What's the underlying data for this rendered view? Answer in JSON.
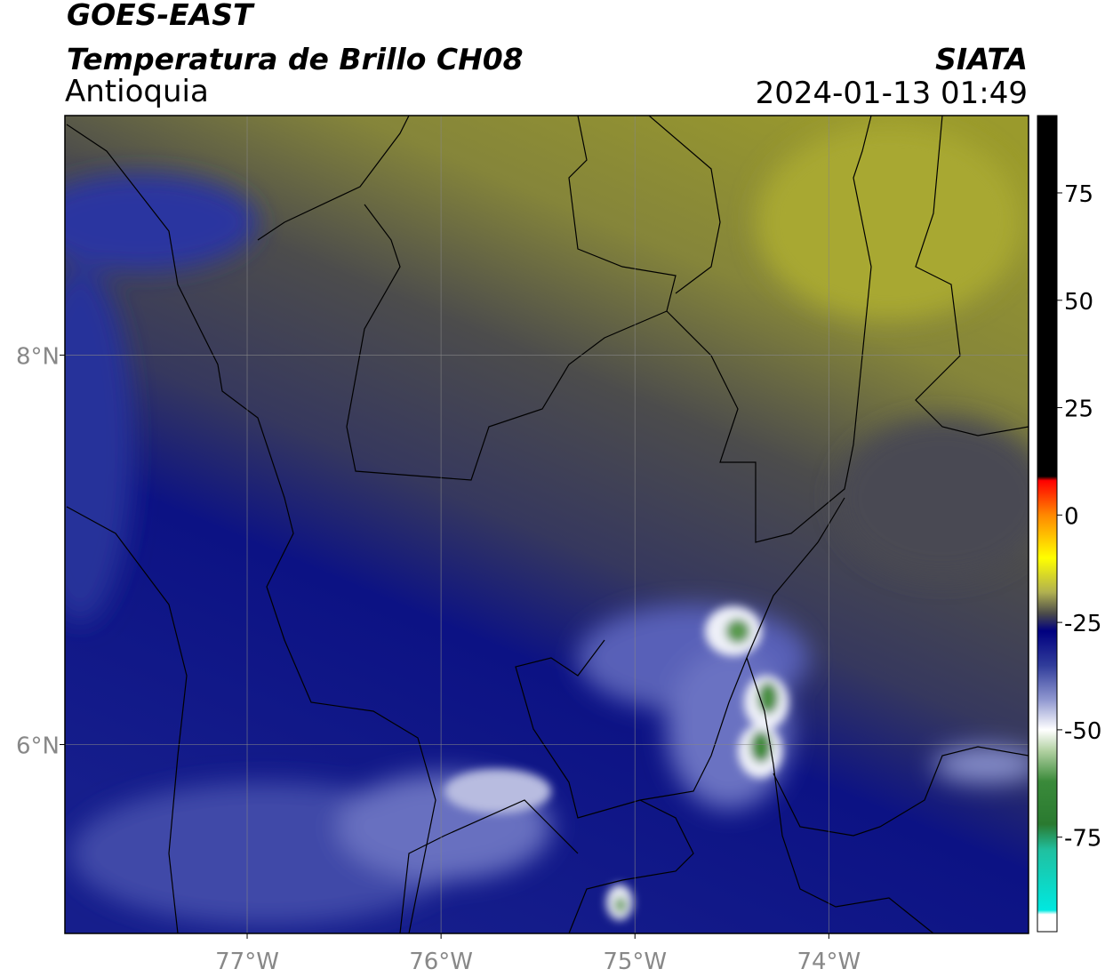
{
  "chart_data": {
    "type": "map",
    "title": "GOES-EAST",
    "subtitle": "Temperatura de Brillo CH08",
    "region": "Antioquia",
    "source": "SIATA",
    "timestamp": "2024-01-13 01:49",
    "xlim": [
      -77.94,
      -72.97
    ],
    "ylim": [
      5.03,
      9.23
    ],
    "xticks": [
      {
        "value": -77,
        "label": "77°W"
      },
      {
        "value": -76,
        "label": "76°W"
      },
      {
        "value": -75,
        "label": "75°W"
      },
      {
        "value": -74,
        "label": "74°W"
      }
    ],
    "yticks": [
      {
        "value": 6,
        "label": "6°N"
      },
      {
        "value": 8,
        "label": "8°N"
      }
    ],
    "grid": true,
    "colorbar": {
      "lim": [
        -97,
        93
      ],
      "ticks": [
        -75,
        -50,
        -25,
        0,
        25,
        50,
        75
      ],
      "colormap": [
        {
          "value": -97,
          "color": "#ffffff"
        },
        {
          "value": -93,
          "color": "#ffffff"
        },
        {
          "value": -92,
          "color": "#00e8e0"
        },
        {
          "value": -78,
          "color": "#20c0a0"
        },
        {
          "value": -72,
          "color": "#2a7a30"
        },
        {
          "value": -62,
          "color": "#3a8a3a"
        },
        {
          "value": -55,
          "color": "#b0d0a0"
        },
        {
          "value": -50,
          "color": "#ffffff"
        },
        {
          "value": -43,
          "color": "#9098d0"
        },
        {
          "value": -35,
          "color": "#303c9a"
        },
        {
          "value": -27,
          "color": "#000080"
        },
        {
          "value": -23,
          "color": "#4a4a4a"
        },
        {
          "value": -18,
          "color": "#b0b050"
        },
        {
          "value": -10,
          "color": "#ffff00"
        },
        {
          "value": 0,
          "color": "#ff8800"
        },
        {
          "value": 8,
          "color": "#ff0000"
        },
        {
          "value": 9,
          "color": "#000000"
        },
        {
          "value": 93,
          "color": "#000000"
        }
      ]
    }
  }
}
